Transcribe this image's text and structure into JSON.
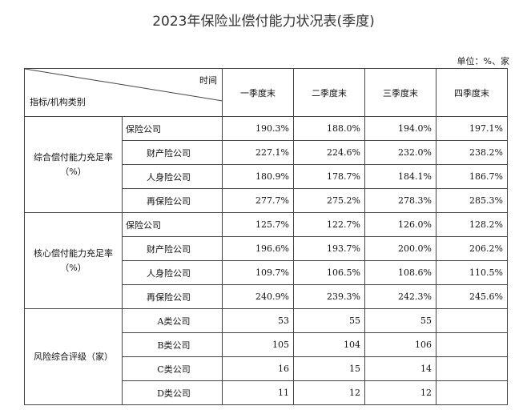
{
  "title": "2023年保险业偿付能力状况表(季度)",
  "unit": "单位：%、家",
  "header": {
    "time_label": "时间",
    "category_label": "指标/机构类别",
    "quarters": [
      "一季度末",
      "二季度末",
      "三季度末",
      "四季度末"
    ]
  },
  "groups": [
    {
      "name": "综合偿付能力充足率",
      "unit": "（%）",
      "rows": [
        {
          "label": "保险公司",
          "values": [
            "190.3%",
            "188.0%",
            "194.0%",
            "197.1%"
          ]
        },
        {
          "label": "财产险公司",
          "values": [
            "227.1%",
            "224.6%",
            "232.0%",
            "238.2%"
          ]
        },
        {
          "label": "人身险公司",
          "values": [
            "180.9%",
            "178.7%",
            "184.1%",
            "186.7%"
          ]
        },
        {
          "label": "再保险公司",
          "values": [
            "277.7%",
            "275.2%",
            "278.3%",
            "285.3%"
          ]
        }
      ]
    },
    {
      "name": "核心偿付能力充足率",
      "unit": "（%）",
      "rows": [
        {
          "label": "保险公司",
          "values": [
            "125.7%",
            "122.7%",
            "126.0%",
            "128.2%"
          ]
        },
        {
          "label": "财产险公司",
          "values": [
            "196.6%",
            "193.7%",
            "200.0%",
            "206.2%"
          ]
        },
        {
          "label": "人身险公司",
          "values": [
            "109.7%",
            "106.5%",
            "108.6%",
            "110.5%"
          ]
        },
        {
          "label": "再保险公司",
          "values": [
            "240.9%",
            "239.3%",
            "242.3%",
            "245.6%"
          ]
        }
      ]
    },
    {
      "name": "风险综合评级（家）",
      "rows": [
        {
          "label": "A类公司",
          "values": [
            "53",
            "55",
            "55",
            ""
          ]
        },
        {
          "label": "B类公司",
          "values": [
            "105",
            "104",
            "106",
            ""
          ]
        },
        {
          "label": "C类公司",
          "values": [
            "16",
            "15",
            "14",
            ""
          ]
        },
        {
          "label": "D类公司",
          "values": [
            "11",
            "12",
            "12",
            ""
          ]
        }
      ]
    }
  ]
}
